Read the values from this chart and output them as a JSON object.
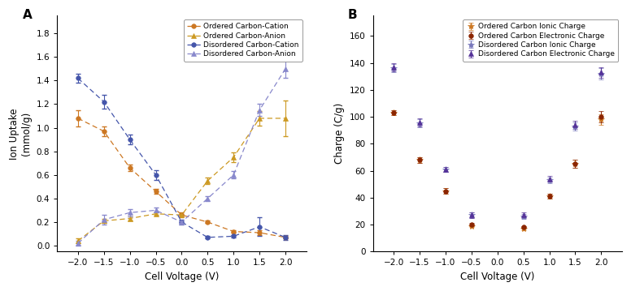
{
  "panel_A": {
    "title": "A",
    "xlabel": "Cell Voltage (V)",
    "ylabel": "Ion Uptake\n(mmol/g)",
    "xlim": [
      -2.4,
      2.4
    ],
    "ylim": [
      -0.05,
      1.95
    ],
    "yticks": [
      0.0,
      0.2,
      0.4,
      0.6,
      0.8,
      1.0,
      1.2,
      1.4,
      1.6,
      1.8
    ],
    "xticks": [
      -2.0,
      -1.5,
      -1.0,
      -0.5,
      0.0,
      0.5,
      1.0,
      1.5,
      2.0
    ],
    "series": {
      "Ordered Carbon-Cation": {
        "color": "#CC7722",
        "marker": "o",
        "markersize": 4,
        "linestyle": "--",
        "x": [
          -2.0,
          -1.5,
          -1.0,
          -0.5,
          0.0,
          0.5,
          1.0,
          1.5,
          2.0
        ],
        "y": [
          1.08,
          0.97,
          0.66,
          0.46,
          0.26,
          0.2,
          0.12,
          0.11,
          0.07
        ],
        "yerr": [
          0.07,
          0.04,
          0.03,
          0.02,
          0.02,
          0.01,
          0.01,
          0.02,
          0.01
        ]
      },
      "Ordered Carbon-Anion": {
        "color": "#CC9922",
        "marker": "^",
        "markersize": 4,
        "linestyle": "--",
        "x": [
          -2.0,
          -1.5,
          -1.0,
          -0.5,
          0.0,
          0.5,
          1.0,
          1.5,
          2.0
        ],
        "y": [
          0.04,
          0.21,
          0.23,
          0.27,
          0.26,
          0.55,
          0.75,
          1.08,
          1.08
        ],
        "yerr": [
          0.02,
          0.02,
          0.02,
          0.01,
          0.01,
          0.03,
          0.04,
          0.06,
          0.15
        ]
      },
      "Disordered Carbon-Cation": {
        "color": "#4455AA",
        "marker": "o",
        "markersize": 4,
        "linestyle": "--",
        "x": [
          -2.0,
          -1.5,
          -1.0,
          -0.5,
          0.0,
          0.5,
          1.0,
          1.5,
          2.0
        ],
        "y": [
          1.42,
          1.22,
          0.9,
          0.6,
          0.2,
          0.07,
          0.08,
          0.16,
          0.07
        ],
        "yerr": [
          0.04,
          0.06,
          0.04,
          0.04,
          0.02,
          0.01,
          0.01,
          0.08,
          0.02
        ]
      },
      "Disordered Carbon-Anion": {
        "color": "#8888CC",
        "marker": "^",
        "markersize": 4,
        "linestyle": "--",
        "x": [
          -2.0,
          -1.5,
          -1.0,
          -0.5,
          0.0,
          0.5,
          1.0,
          1.5,
          2.0
        ],
        "y": [
          0.02,
          0.22,
          0.28,
          0.3,
          0.2,
          0.4,
          0.6,
          1.15,
          1.5
        ],
        "yerr": [
          0.02,
          0.04,
          0.03,
          0.02,
          0.01,
          0.02,
          0.03,
          0.05,
          0.08
        ]
      }
    }
  },
  "panel_B": {
    "title": "B",
    "xlabel": "Cell Voltage (V)",
    "ylabel": "Charge (C/g)",
    "xlim": [
      -2.4,
      2.4
    ],
    "ylim": [
      0,
      175
    ],
    "yticks": [
      0,
      20,
      40,
      60,
      80,
      100,
      120,
      140,
      160
    ],
    "xticks": [
      -2.0,
      -1.5,
      -1.0,
      -0.5,
      0.0,
      0.5,
      1.0,
      1.5,
      2.0
    ],
    "series": {
      "Ordered Carbon Ionic Charge": {
        "color": "#CC7722",
        "marker": "*",
        "markersize": 6,
        "x": [
          -2.0,
          -1.5,
          -1.0,
          -0.5,
          0.5,
          1.0,
          1.5,
          2.0
        ],
        "y": [
          103,
          68,
          45,
          19,
          17,
          41,
          65,
          98
        ],
        "yerr": [
          2,
          2,
          2,
          1,
          1,
          2,
          3,
          4
        ]
      },
      "Ordered Carbon Electronic Charge": {
        "color": "#8B2500",
        "marker": "o",
        "markersize": 4,
        "x": [
          -2.0,
          -1.5,
          -1.0,
          -0.5,
          0.5,
          1.0,
          1.5,
          2.0
        ],
        "y": [
          103,
          68,
          45,
          20,
          18,
          41,
          65,
          100
        ],
        "yerr": [
          2,
          2,
          2,
          1,
          1,
          2,
          3,
          4
        ]
      },
      "Disordered Carbon Ionic Charge": {
        "color": "#7777BB",
        "marker": "*",
        "markersize": 6,
        "x": [
          -2.0,
          -1.5,
          -1.0,
          -0.5,
          0.5,
          1.0,
          1.5,
          2.0
        ],
        "y": [
          136,
          95,
          61,
          27,
          26,
          53,
          93,
          132
        ],
        "yerr": [
          3,
          3,
          2,
          2,
          2,
          2,
          3,
          4
        ]
      },
      "Disordered Carbon Electronic Charge": {
        "color": "#553399",
        "marker": "^",
        "markersize": 4,
        "x": [
          -2.0,
          -1.5,
          -1.0,
          -0.5,
          0.5,
          1.0,
          1.5,
          2.0
        ],
        "y": [
          137,
          96,
          61,
          27,
          27,
          54,
          94,
          133
        ],
        "yerr": [
          3,
          3,
          2,
          2,
          2,
          2,
          3,
          4
        ]
      }
    }
  },
  "fig_width": 7.76,
  "fig_height": 3.59,
  "dpi": 100,
  "legend_fontsize": 6.5,
  "tick_labelsize": 7.5,
  "axis_labelsize": 8.5
}
